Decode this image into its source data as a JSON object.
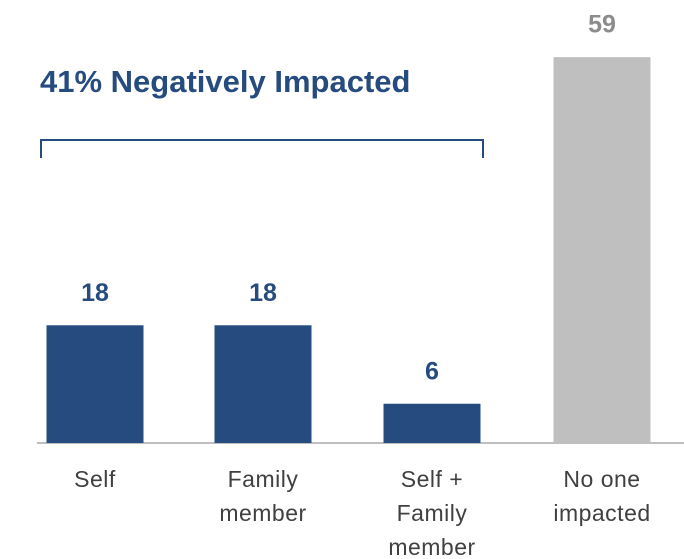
{
  "chart_data": {
    "type": "bar",
    "annotation": "41% Negatively Impacted",
    "categories": [
      "Self",
      "Family member",
      "Self + Family member",
      "No one impacted"
    ],
    "values": [
      18,
      18,
      6,
      59
    ],
    "colors": [
      "#264c7f",
      "#264c7f",
      "#264c7f",
      "#bfbfbf"
    ],
    "label_colors": [
      "#264c7f",
      "#264c7f",
      "#264c7f",
      "#8c8c8c"
    ]
  }
}
